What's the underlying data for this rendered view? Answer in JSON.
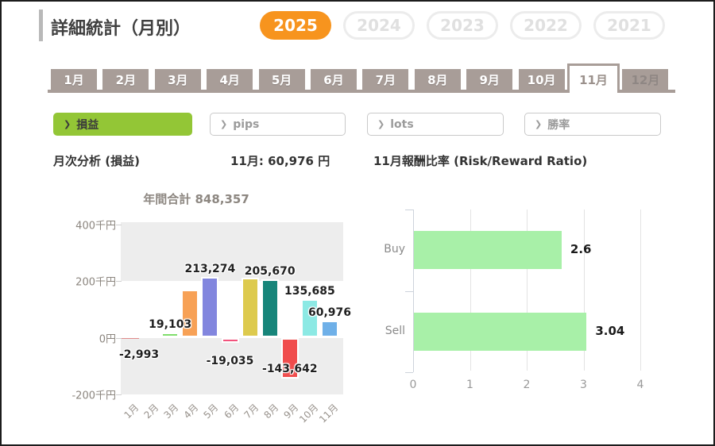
{
  "page": {
    "title": "詳細統計（月別）"
  },
  "year_tabs": {
    "selected": "2025",
    "items": [
      {
        "label": "2025",
        "active": true
      },
      {
        "label": "2024",
        "active": false
      },
      {
        "label": "2023",
        "active": false
      },
      {
        "label": "2022",
        "active": false
      },
      {
        "label": "2021",
        "active": false
      }
    ]
  },
  "month_tabs": {
    "selected": "11月",
    "disabled": "12月",
    "items": [
      "1月",
      "2月",
      "3月",
      "4月",
      "5月",
      "6月",
      "7月",
      "8月",
      "9月",
      "10月",
      "11月",
      "12月"
    ]
  },
  "filters": {
    "chevron": "❯",
    "items": [
      {
        "label": "損益",
        "active": true
      },
      {
        "label": "pips",
        "active": false
      },
      {
        "label": "lots",
        "active": false
      },
      {
        "label": "勝率",
        "active": false
      }
    ]
  },
  "headers": {
    "left": "月次分析 (損益)",
    "month_total": "11月:  60,976 円",
    "right": "11月報酬比率 (Risk/Reward Ratio)"
  },
  "colors": {
    "accent_orange": "#f7941e",
    "accent_green": "#93c636",
    "tab_taupe": "#a89d98",
    "band_gray": "#ededed",
    "rr_bar_green": "#a8f0a8"
  },
  "chart_data": [
    {
      "type": "bar",
      "title": "年間合計 848,357",
      "annual_total": 848357,
      "unit": "円",
      "categories": [
        "1月",
        "2月",
        "3月",
        "4月",
        "5月",
        "6月",
        "7月",
        "8月",
        "9月",
        "10月",
        "11月"
      ],
      "points": [
        {
          "month": "1月",
          "value": -2993,
          "label": "-2,993",
          "label_pos": "below-left",
          "color": "#e08a8a"
        },
        {
          "month": "2月",
          "value": 0,
          "label": "",
          "label_pos": "none",
          "color": "#cccccc"
        },
        {
          "month": "3月",
          "value": 19103,
          "label": "19,103",
          "label_pos": "above",
          "color": "#7fdd6b"
        },
        {
          "month": "4月",
          "value": 168000,
          "label": "",
          "label_pos": "none",
          "color": "#f7a156",
          "estimated": true
        },
        {
          "month": "5月",
          "value": 213274,
          "label": "213,274",
          "label_pos": "above",
          "color": "#8286de"
        },
        {
          "month": "6月",
          "value": -19035,
          "label": "-19,035",
          "label_pos": "below",
          "color": "#f2537c"
        },
        {
          "month": "7月",
          "value": 211000,
          "label": "",
          "label_pos": "none",
          "color": "#ddca4e",
          "estimated": true
        },
        {
          "month": "8月",
          "value": 205670,
          "label": "205,670",
          "label_pos": "above",
          "color": "#17857a"
        },
        {
          "month": "9月",
          "value": -143642,
          "label": "-143,642",
          "label_pos": "inside",
          "color": "#f04c4c"
        },
        {
          "month": "10月",
          "value": 135685,
          "label": "135,685",
          "label_pos": "above",
          "color": "#8ce9e4"
        },
        {
          "month": "11月",
          "value": 60976,
          "label": "60,976",
          "label_pos": "above",
          "color": "#6fb0e8"
        }
      ],
      "y_ticks": [
        {
          "v": 400000,
          "label": "400千円"
        },
        {
          "v": 200000,
          "label": "200千円"
        },
        {
          "v": 0,
          "label": "0円"
        },
        {
          "v": -200000,
          "label": "-200千円"
        }
      ],
      "ylim": [
        -200000,
        400000
      ],
      "legend": "none",
      "grid": "banded"
    },
    {
      "type": "bar-horizontal",
      "title": "11月報酬比率 (Risk/Reward Ratio)",
      "points": [
        {
          "label": "Buy",
          "value": 2.6,
          "value_label": "2.6"
        },
        {
          "label": "Sell",
          "value": 3.04,
          "value_label": "3.04"
        }
      ],
      "x_ticks": [
        0,
        1,
        2,
        3,
        4
      ],
      "xlim": [
        0,
        4
      ],
      "bar_color": "#a8f0a8",
      "grid": "vertical"
    }
  ]
}
